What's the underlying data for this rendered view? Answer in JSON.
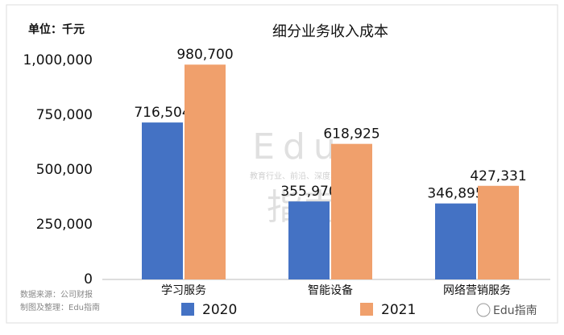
{
  "chart_data": {
    "type": "bar",
    "title": "细分业务收入成本",
    "unit_label": "单位：千元",
    "categories": [
      "学习服务",
      "智能设备",
      "网络营销服务"
    ],
    "series": [
      {
        "name": "2020",
        "color": "#4472c4",
        "values": [
          716504,
          355970,
          346895
        ],
        "value_labels": [
          "716,504",
          "355,970",
          "346,895"
        ]
      },
      {
        "name": "2021",
        "color": "#f0a06c",
        "values": [
          980700,
          618925,
          427331
        ],
        "value_labels": [
          "980,700",
          "618,925",
          "427,331"
        ]
      }
    ],
    "ylim": [
      0,
      1000000
    ],
    "yticks": [
      0,
      {
        "value": 250000,
        "label": "250,000"
      },
      {
        "value": 500000,
        "label": "500,000"
      },
      {
        "value": 750000,
        "label": "750,000"
      },
      {
        "value": 1000000,
        "label": "1,000,000"
      }
    ],
    "grid": false,
    "legend": "bottom",
    "source": "数据来源：公司财报",
    "credit": "制图及整理：Edu指南",
    "watermark": "Edu",
    "watermark_cn": "指南",
    "watermark_tagline": "教育行业、前沿、深度、独家",
    "brand": "Edu指南"
  }
}
